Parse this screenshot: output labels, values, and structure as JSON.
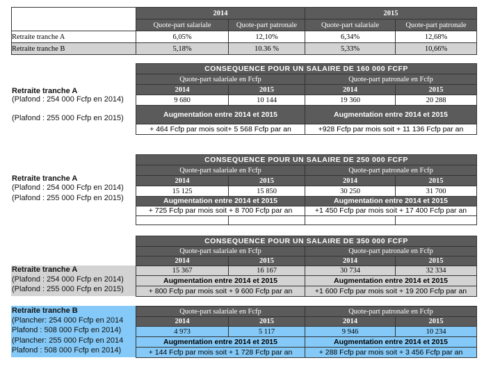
{
  "rates": {
    "years": [
      "2014",
      "2015"
    ],
    "subheaders": [
      "Quote-part salariale",
      "Quote-part patronale",
      "Quote-part salariale",
      "Quote-part patronale"
    ],
    "rows": [
      {
        "label": "Retraite tranche A",
        "values": [
          "6,05%",
          "12,10%",
          "6,34%",
          "12,68%"
        ]
      },
      {
        "label": "Retraite tranche B",
        "values": [
          "5,18%",
          "10.36 %",
          "5,33%",
          "10,66%"
        ]
      }
    ]
  },
  "blocks": [
    {
      "title": "CONSEQUENCE POUR UN SALAIRE DE 160 000 FCFP",
      "groups": [
        "Quote-part salariale en Fcfp",
        "Quote-part patronale en Fcfp"
      ],
      "years": [
        "2014",
        "2015",
        "2014",
        "2015"
      ],
      "values": [
        "9 680",
        "10 144",
        "19 360",
        "20 288"
      ],
      "aug": [
        "Augmentation entre 2014 et 2015",
        "Augmentation entre 2014 et 2015"
      ],
      "results": [
        "+ 464 Fcfp par mois soit+ 5 568 Fcfp par an",
        "+928 Fcfp par mois soit + 11 136 Fcfp par an"
      ],
      "labels": [
        "Retraite tranche A",
        "(Plafond : 254 000 Fcfp en 2014)",
        "(Plafond : 255 000 Fcfp en 2015)"
      ]
    },
    {
      "title": "CONSEQUENCE POUR UN SALAIRE DE 250 000 FCFP",
      "groups": [
        "Quote-part salariale en Fcfp",
        "Quote-part patronale en Fcfp"
      ],
      "years": [
        "2014",
        "2015",
        "2014",
        "2015"
      ],
      "values": [
        "15 125",
        "15 850",
        "30 250",
        "31 700"
      ],
      "aug": [
        "Augmentation entre 2014 et 2015",
        "Augmentation entre 2014 et 2015"
      ],
      "results": [
        "+ 725 Fcfp par mois soit + 8 700 Fcfp par an",
        "+1 450 Fcfp par mois soit + 17 400 Fcfp par an"
      ],
      "labels": [
        "Retraite tranche A",
        "(Plafond : 254 000 Fcfp en 2014)",
        "(Plafond : 255 000 Fcfp en 2015)"
      ]
    },
    {
      "title": "CONSEQUENCE POUR UN SALAIRE DE 350 000 FCFP",
      "groups": [
        "Quote-part salariale en Fcfp",
        "Quote-part patronale en Fcfp"
      ],
      "years": [
        "2014",
        "2015",
        "2014",
        "2015"
      ],
      "values": [
        "15 367",
        "16 167",
        "30 734",
        "32 334"
      ],
      "aug": [
        "Augmentation entre 2014 et 2015",
        "Augmentation entre 2014 et 2015"
      ],
      "results": [
        "+ 800 Fcfp par mois soit + 9 600 Fcfp par an",
        "+1 600 Fcfp par mois soit + 19 200 Fcfp par an"
      ],
      "labels": [
        "Retraite tranche A",
        "(Plafond : 254 000 Fcfp en 2014)",
        "(Plafond : 255 000 Fcfp en 2015)"
      ]
    },
    {
      "title": "",
      "groups": [
        "Quote-part salariale en Fcfp",
        "Quote-part patronale en Fcfp"
      ],
      "years": [
        "2014",
        "2015",
        "2014",
        "2015"
      ],
      "values": [
        "4 973",
        "5 117",
        "9 946",
        "10 234"
      ],
      "aug": [
        "Augmentation entre 2014 et 2015",
        "Augmentation entre 2014 et 2015"
      ],
      "results": [
        "+ 144 Fcfp par mois soit + 1 728 Fcfp par an",
        "+ 288 Fcfp par mois soit + 3 456 Fcfp par an"
      ],
      "labels": [
        "Retraite tranche B",
        "(Plancher: 254 000 Fcfp en 2014",
        "Plafond : 508 000 Fcfp en 2014)",
        "(Plancher: 255 000 Fcfp en 2014",
        "Plafond : 508 000 Fcfp en 2014)"
      ]
    }
  ],
  "colors": {
    "header": "#5b5b5b",
    "grey_row": "#d3d3d3",
    "blue_row": "#84c9f7"
  }
}
